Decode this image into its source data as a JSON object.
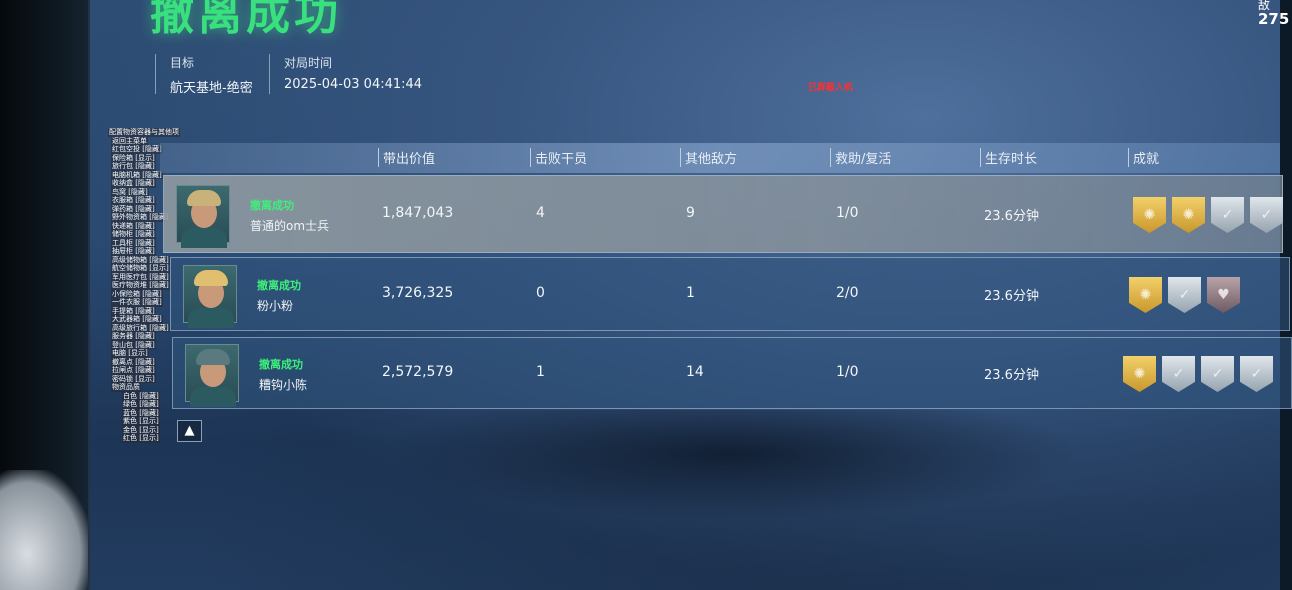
{
  "title": "撤离成功",
  "meta": [
    {
      "label": "目标",
      "value": "航天基地-绝密"
    },
    {
      "label": "对局时间",
      "value": "2025-04-03 04:41:44"
    }
  ],
  "bot_notice": "已屏蔽人机",
  "top_right": {
    "line1": "敌",
    "line2": "275"
  },
  "overlay_menu": {
    "header": "配置物资容器与其他项",
    "items": [
      "返回主菜单",
      "红包空投 [隐藏]",
      "保险箱 [显示]",
      "旅行包 [隐藏]",
      "电脑机箱 [隐藏]",
      "收纳盒 [隐藏]",
      "鸟窝 [隐藏]",
      "衣服箱 [隐藏]",
      "弹药箱 [隐藏]",
      "野外物资箱 [隐藏]",
      "快递箱 [隐藏]",
      "储物柜 [隐藏]",
      "工具柜 [隐藏]",
      "抽屉柜 [隐藏]",
      "高级储物箱 [隐藏]",
      "航空储物箱 [显示]",
      "军用医疗包 [隐藏]",
      "医疗物资堆 [隐藏]",
      "小保险箱 [隐藏]",
      "一件衣服 [隐藏]",
      "手提箱 [隐藏]",
      "大武器箱 [隐藏]",
      "高级旅行箱 [隐藏]",
      "服务器 [隐藏]",
      "登山包 [隐藏]",
      "电脑 [显示]",
      "撤离点 [隐藏]",
      "拉闸点 [隐藏]",
      "密码锁 [显示]"
    ],
    "quality_header": "物资品质",
    "quality": [
      "白色 [隐藏]",
      "绿色 [隐藏]",
      "蓝色 [隐藏]",
      "紫色 [显示]",
      "金色 [显示]",
      "红色 [显示]"
    ]
  },
  "columns": [
    "带出价值",
    "击败干员",
    "其他敌方",
    "救助/复活",
    "生存时长",
    "成就"
  ],
  "players": [
    {
      "status": "撤离成功",
      "name": "普通的om士兵",
      "value": "1,847,043",
      "kills": "4",
      "others": "9",
      "assist": "1/0",
      "survive": "23.6分钟",
      "badges": [
        "gold",
        "gold",
        "silver",
        "silver"
      ],
      "helm": "#c8b27a"
    },
    {
      "status": "撤离成功",
      "name": "粉小粉",
      "value": "3,726,325",
      "kills": "0",
      "others": "1",
      "assist": "2/0",
      "survive": "23.6分钟",
      "badges": [
        "gold",
        "silver",
        "rose"
      ],
      "helm": "#e0c070"
    },
    {
      "status": "撤离成功",
      "name": "糟钩小陈",
      "value": "2,572,579",
      "kills": "1",
      "others": "14",
      "assist": "1/0",
      "survive": "23.6分钟",
      "badges": [
        "gold",
        "silver",
        "silver",
        "silver"
      ],
      "helm": "#5a7a80"
    }
  ],
  "warn_icon": "warning-triangle-icon"
}
